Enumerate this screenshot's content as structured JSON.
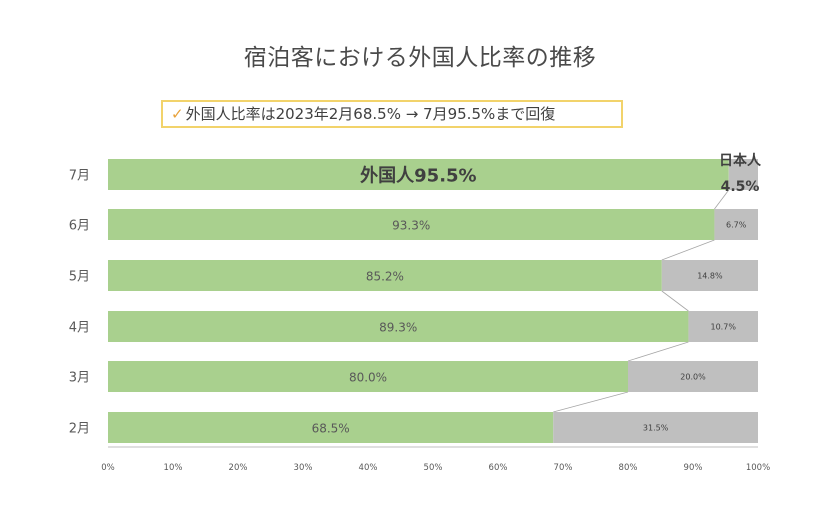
{
  "title": "宿泊客における外国人比率の推移",
  "callout": {
    "check": "✓",
    "text": "外国人比率は2023年2月68.5% → 7月95.5%まで回復"
  },
  "colors": {
    "foreign": "#a9d08e",
    "japanese": "#bfbfbf",
    "connector": "#a6a6a6",
    "axis": "#bfbfbf"
  },
  "chart_data": {
    "type": "bar",
    "stacked": true,
    "orientation": "horizontal",
    "title": "宿泊客における外国人比率の推移",
    "categories": [
      "7月",
      "6月",
      "5月",
      "4月",
      "3月",
      "2月"
    ],
    "series": [
      {
        "values": [
          95.5,
          93.3,
          85.2,
          89.3,
          80.0,
          68.5
        ],
        "labels": [
          "外国人95.5%",
          "93.3%",
          "85.2%",
          "89.3%",
          "80.0%",
          "68.5%"
        ]
      },
      {
        "values": [
          4.5,
          6.7,
          14.8,
          10.7,
          20.0,
          31.5
        ],
        "labels": [
          "4.5%",
          "6.7%",
          "14.8%",
          "10.7%",
          "20.0%",
          "31.5%"
        ]
      }
    ],
    "annotation": {
      "line1": "日本人",
      "line2": "4.5%"
    },
    "xlim": [
      0,
      100
    ],
    "xticks": [
      "0%",
      "10%",
      "20%",
      "30%",
      "40%",
      "50%",
      "60%",
      "70%",
      "80%",
      "90%",
      "100%"
    ],
    "grid": false
  }
}
